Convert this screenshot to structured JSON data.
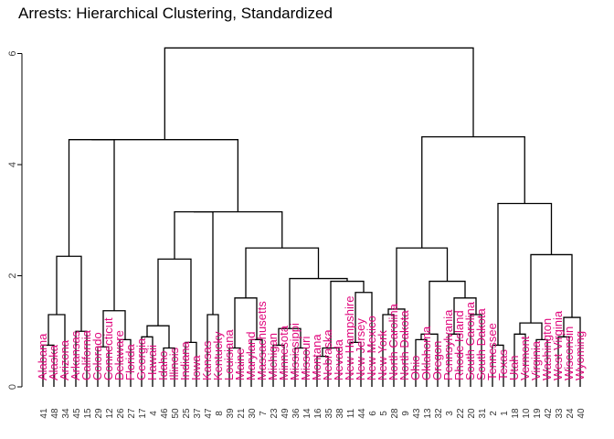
{
  "title": "Arrests:  Hierarchical Clustering, Standardized",
  "label_color": "#e0077d",
  "line_color": "#000000",
  "chart_data": {
    "type": "dendrogram",
    "y_ticks": [
      "0",
      "2",
      "4",
      "6"
    ],
    "ylim": [
      0,
      6.5
    ],
    "leaves": [
      {
        "name": "Alabama",
        "num": "41"
      },
      {
        "name": "Alaska",
        "num": "48"
      },
      {
        "name": "Arizona",
        "num": "34"
      },
      {
        "name": "Arkansas",
        "num": "45"
      },
      {
        "name": "California",
        "num": "15"
      },
      {
        "name": "Colorado",
        "num": "29"
      },
      {
        "name": "Connecticut",
        "num": "12"
      },
      {
        "name": "Delaware",
        "num": "26"
      },
      {
        "name": "Florida",
        "num": "27"
      },
      {
        "name": "Georgia",
        "num": "17"
      },
      {
        "name": "Hawaii",
        "num": "4"
      },
      {
        "name": "Idaho",
        "num": "46"
      },
      {
        "name": "Illinois",
        "num": "50"
      },
      {
        "name": "Indiana",
        "num": "25"
      },
      {
        "name": "Iowa",
        "num": "37"
      },
      {
        "name": "Kansas",
        "num": "47"
      },
      {
        "name": "Kentucky",
        "num": "8"
      },
      {
        "name": "Louisiana",
        "num": "39"
      },
      {
        "name": "Maine",
        "num": "21"
      },
      {
        "name": "Maryland",
        "num": "30"
      },
      {
        "name": "Massachusetts",
        "num": "7"
      },
      {
        "name": "Michigan",
        "num": "23"
      },
      {
        "name": "Minnesota",
        "num": "49"
      },
      {
        "name": "Mississippi",
        "num": "36"
      },
      {
        "name": "Missouri",
        "num": "14"
      },
      {
        "name": "Montana",
        "num": "16"
      },
      {
        "name": "Nebraska",
        "num": "35"
      },
      {
        "name": "Nevada",
        "num": "38"
      },
      {
        "name": "New Hampshire",
        "num": "11"
      },
      {
        "name": "New Jersey",
        "num": "44"
      },
      {
        "name": "New Mexico",
        "num": "6"
      },
      {
        "name": "New York",
        "num": "5"
      },
      {
        "name": "North Carolina",
        "num": "28"
      },
      {
        "name": "North Dakota",
        "num": "9"
      },
      {
        "name": "Ohio",
        "num": "43"
      },
      {
        "name": "Oklahoma",
        "num": "13"
      },
      {
        "name": "Oregon",
        "num": "32"
      },
      {
        "name": "Pennsylvania",
        "num": "3"
      },
      {
        "name": "Rhode Island",
        "num": "22"
      },
      {
        "name": "South Carolina",
        "num": "20"
      },
      {
        "name": "South Dakota",
        "num": "31"
      },
      {
        "name": "Tennessee",
        "num": "2"
      },
      {
        "name": "Texas",
        "num": "1"
      },
      {
        "name": "Utah",
        "num": "18"
      },
      {
        "name": "Vermont",
        "num": "10"
      },
      {
        "name": "Virginia",
        "num": "19"
      },
      {
        "name": "Washington",
        "num": "42"
      },
      {
        "name": "West Virginia",
        "num": "33"
      },
      {
        "name": "Wisconsin",
        "num": "24"
      },
      {
        "name": "Wyoming",
        "num": "40"
      }
    ],
    "merges": [
      {
        "a": 0,
        "b": 1,
        "h": 0.75
      },
      {
        "a": "m0",
        "b": 2,
        "h": 1.3
      },
      {
        "a": 3,
        "b": 4,
        "h": 1.0
      },
      {
        "a": "m1",
        "b": "m2",
        "h": 2.35
      },
      {
        "a": 5,
        "b": 6,
        "h": 0.72
      },
      {
        "a": 7,
        "b": 8,
        "h": 0.85
      },
      {
        "a": "m4",
        "b": "m5",
        "h": 1.37
      },
      {
        "a": "m3",
        "b": "m6",
        "h": 4.45
      },
      {
        "a": 9,
        "b": 10,
        "h": 0.9
      },
      {
        "a": 11,
        "b": 12,
        "h": 0.7
      },
      {
        "a": "m8",
        "b": "m9",
        "h": 1.1
      },
      {
        "a": 13,
        "b": 14,
        "h": 0.8
      },
      {
        "a": "m10",
        "b": "m11",
        "h": 2.3
      },
      {
        "a": 15,
        "b": 16,
        "h": 1.3
      },
      {
        "a": "m12",
        "b": "m13",
        "h": 3.15
      },
      {
        "a": 17,
        "b": 18,
        "h": 0.7
      },
      {
        "a": 19,
        "b": 20,
        "h": 0.85
      },
      {
        "a": "m15",
        "b": "m16",
        "h": 1.6
      },
      {
        "a": 21,
        "b": 22,
        "h": 0.75
      },
      {
        "a": 23,
        "b": 24,
        "h": 0.7
      },
      {
        "a": "m18",
        "b": "m19",
        "h": 1.05
      },
      {
        "a": 25,
        "b": 26,
        "h": 0.55
      },
      {
        "a": "m21",
        "b": 27,
        "h": 0.7
      },
      {
        "a": 28,
        "b": 29,
        "h": 0.8
      },
      {
        "a": "m23",
        "b": 30,
        "h": 1.7
      },
      {
        "a": "m22",
        "b": "m24",
        "h": 1.9
      },
      {
        "a": "m20",
        "b": "m25",
        "h": 1.95
      },
      {
        "a": "m17",
        "b": "m26",
        "h": 2.5
      },
      {
        "a": "m14",
        "b": "m27",
        "h": 3.15
      },
      {
        "a": "m7",
        "b": "m28",
        "h": 4.45
      },
      {
        "a": 31,
        "b": 32,
        "h": 1.3
      },
      {
        "a": "m30",
        "b": 33,
        "h": 1.4
      },
      {
        "a": 34,
        "b": 35,
        "h": 0.85
      },
      {
        "a": "m32",
        "b": 36,
        "h": 0.95
      },
      {
        "a": 37,
        "b": 38,
        "h": 0.95
      },
      {
        "a": 39,
        "b": 40,
        "h": 1.3
      },
      {
        "a": "m34",
        "b": "m35",
        "h": 1.6
      },
      {
        "a": "m33",
        "b": "m36",
        "h": 1.9
      },
      {
        "a": "m31",
        "b": "m37",
        "h": 2.5
      },
      {
        "a": 41,
        "b": 42,
        "h": 0.75
      },
      {
        "a": 43,
        "b": 44,
        "h": 0.95
      },
      {
        "a": 45,
        "b": 46,
        "h": 0.85
      },
      {
        "a": "m40",
        "b": "m41",
        "h": 1.15
      },
      {
        "a": 47,
        "b": 48,
        "h": 0.9
      },
      {
        "a": "m43",
        "b": 49,
        "h": 1.25
      },
      {
        "a": "m42",
        "b": "m44",
        "h": 2.38
      },
      {
        "a": "m39",
        "b": "m45",
        "h": 3.3
      },
      {
        "a": "m38",
        "b": "m46",
        "h": 4.5
      },
      {
        "a": "m29",
        "b": "m47",
        "h": 6.1
      }
    ]
  }
}
